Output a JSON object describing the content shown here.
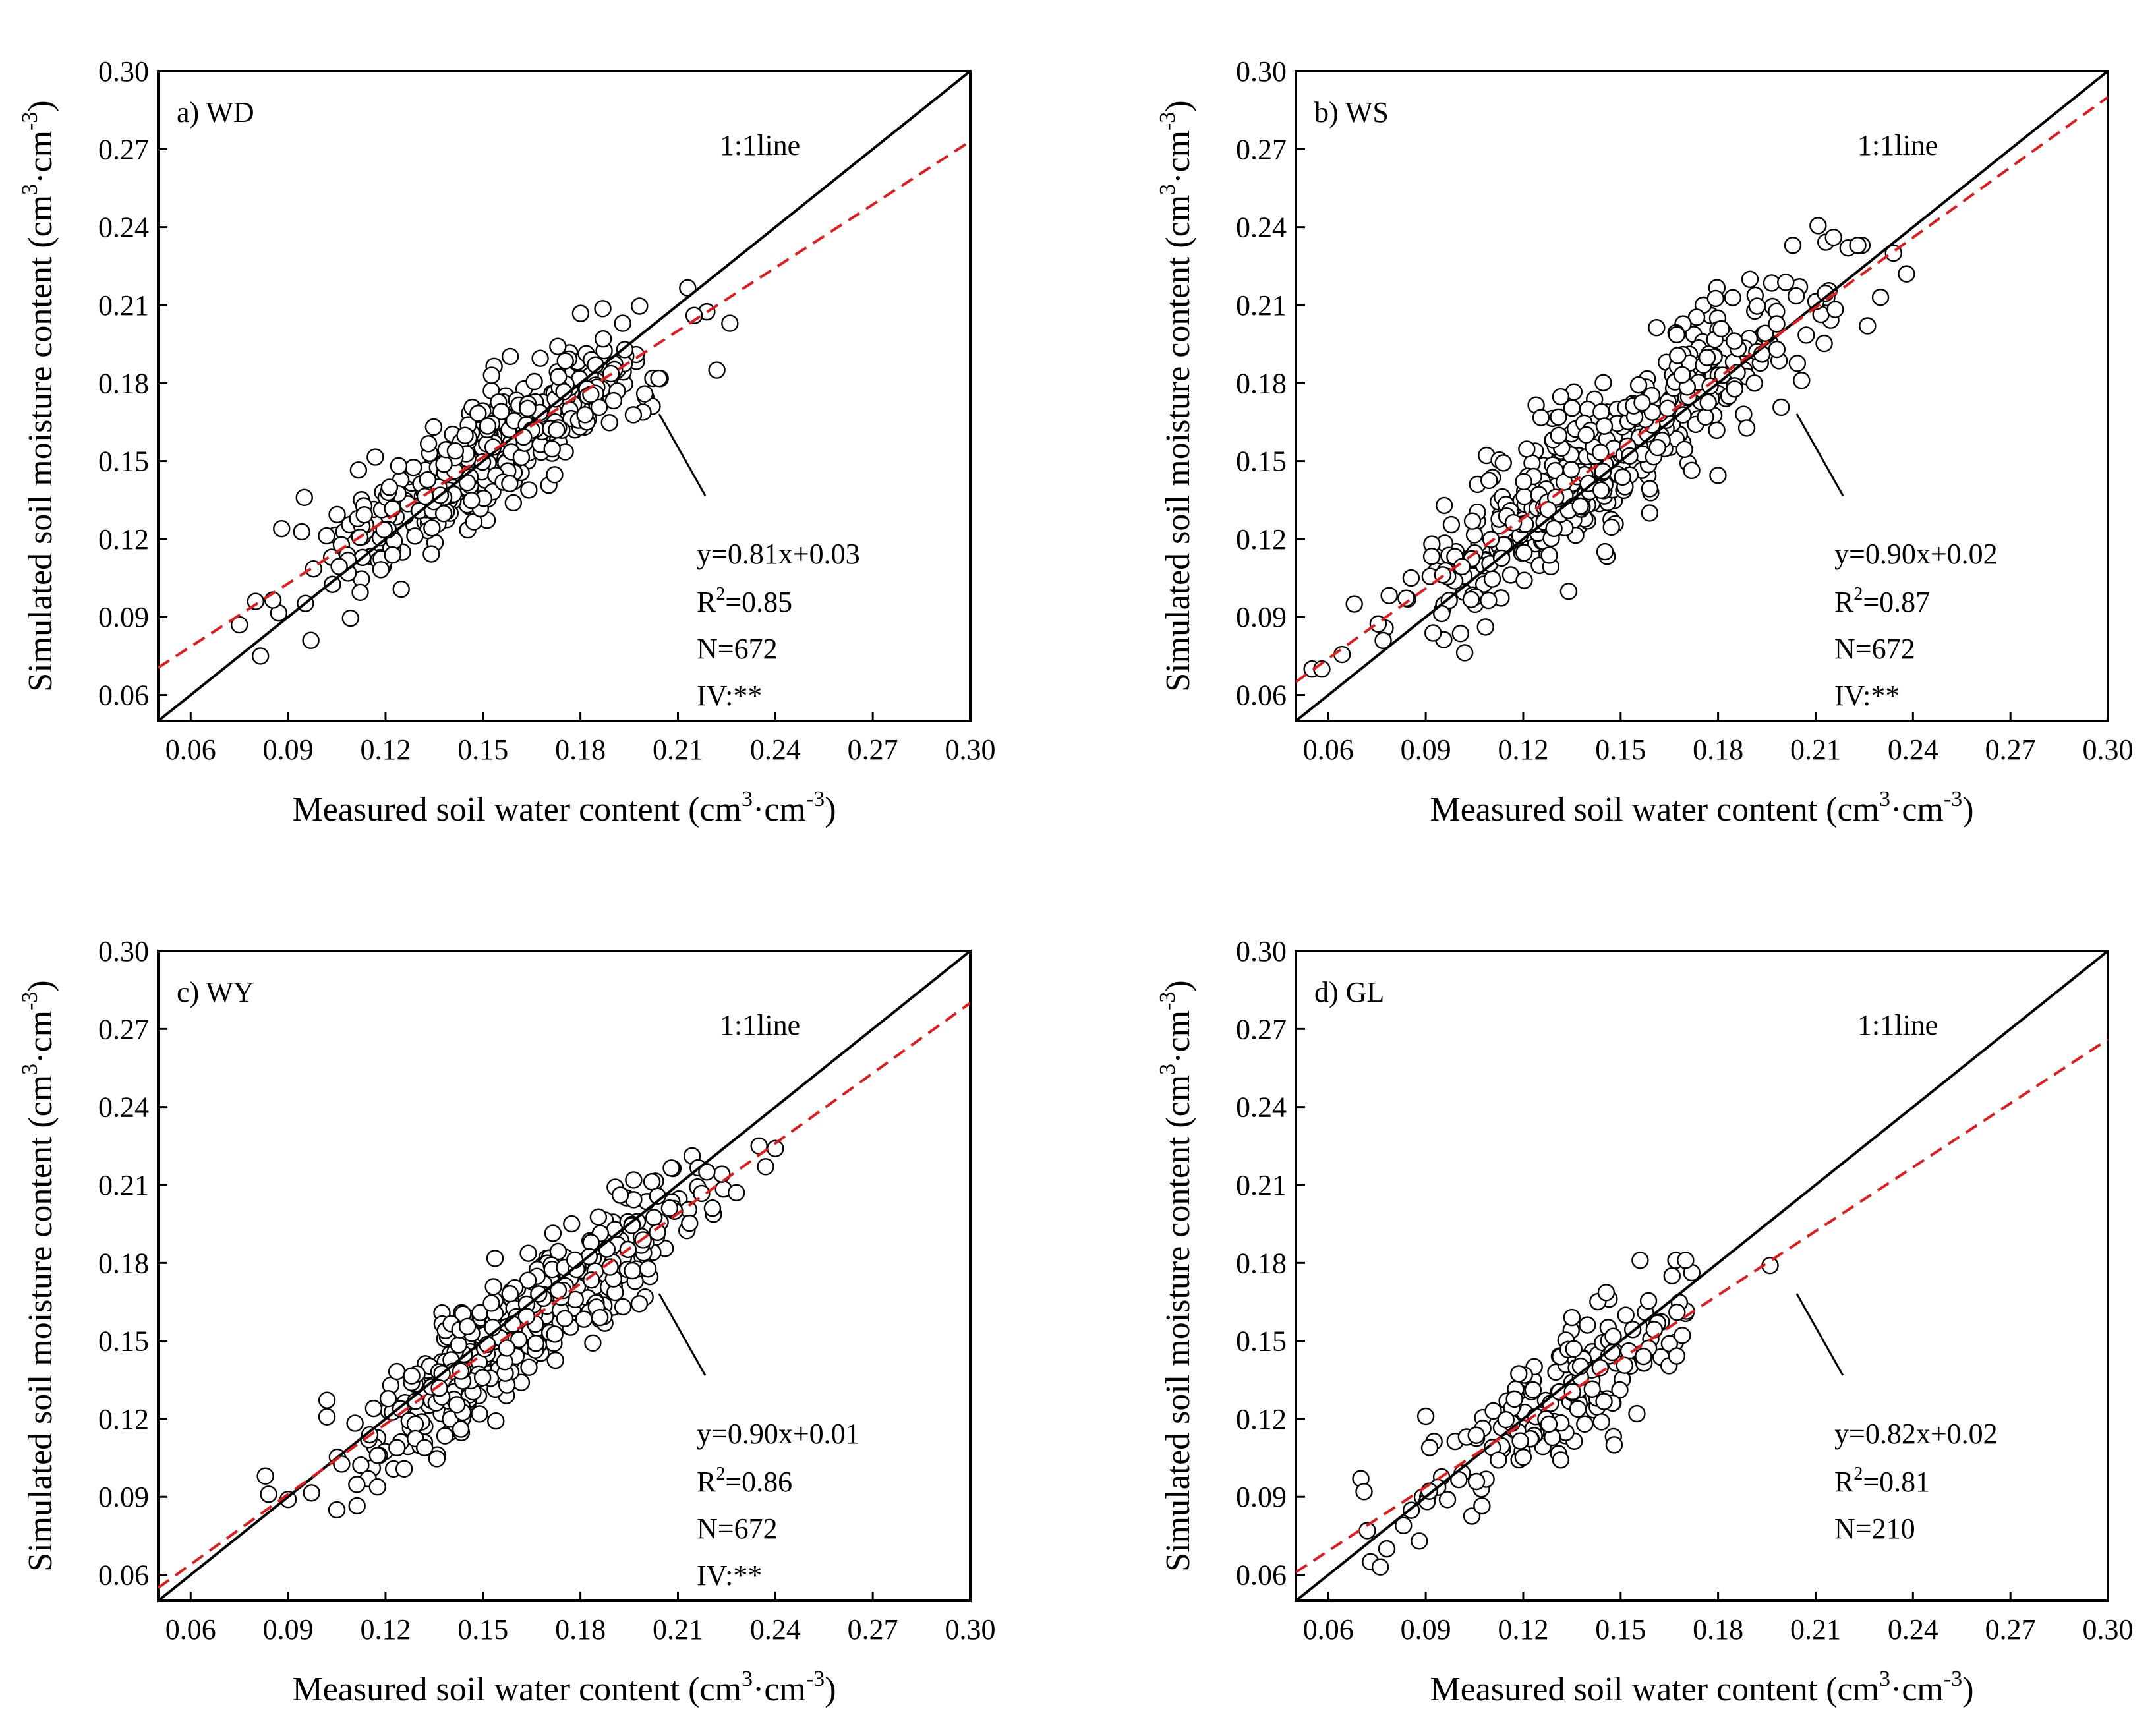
{
  "chart_data": [
    {
      "type": "scatter",
      "panel_label": "a) WD",
      "xlabel_main": "Measured soil water content (cm",
      "xlabel_sup1": "3",
      "xlabel_mid": "·cm",
      "xlabel_sup2": "-3",
      "xlabel_end": ")",
      "ylabel_main": "Simulated soil moisture content (cm",
      "ylabel_sup1": "3",
      "ylabel_mid": "·cm",
      "ylabel_sup2": "-3",
      "ylabel_end": ")",
      "xlim": [
        0.05,
        0.3
      ],
      "ylim": [
        0.05,
        0.3
      ],
      "xticks": [
        "0.06",
        "0.09",
        "0.12",
        "0.15",
        "0.18",
        "0.21",
        "0.24",
        "0.27",
        "0.30"
      ],
      "yticks": [
        "0.06",
        "0.09",
        "0.12",
        "0.15",
        "0.18",
        "0.21",
        "0.24",
        "0.27",
        "0.30"
      ],
      "one_to_one_label": "1:1line",
      "fit": {
        "slope": 0.81,
        "intercept": 0.03,
        "color": "#e31a1c"
      },
      "stats": {
        "equation": "y=0.81x+0.03",
        "r2_prefix": "R",
        "r2_sup": "2",
        "r2_value": "=0.85",
        "n": "N=672",
        "iv": "IV:**"
      },
      "point_cloud": {
        "count": 420,
        "x_range": [
          0.075,
          0.225
        ],
        "noise": 0.011,
        "seed": 11
      },
      "points": [
        [
          0.075,
          0.087
        ],
        [
          0.08,
          0.096
        ],
        [
          0.088,
          0.124
        ],
        [
          0.095,
          0.136
        ],
        [
          0.097,
          0.081
        ],
        [
          0.222,
          0.185
        ],
        [
          0.215,
          0.206
        ],
        [
          0.226,
          0.203
        ],
        [
          0.193,
          0.203
        ],
        [
          0.187,
          0.197
        ]
      ]
    },
    {
      "type": "scatter",
      "panel_label": "b) WS",
      "xlabel_main": "Measured soil water content (cm",
      "xlabel_sup1": "3",
      "xlabel_mid": "·cm",
      "xlabel_sup2": "-3",
      "xlabel_end": ")",
      "ylabel_main": "Simulated soil moisture content (cm",
      "ylabel_sup1": "3",
      "ylabel_mid": "·cm",
      "ylabel_sup2": "-3",
      "ylabel_end": ")",
      "xlim": [
        0.05,
        0.3
      ],
      "ylim": [
        0.05,
        0.3
      ],
      "xticks": [
        "0.06",
        "0.09",
        "0.12",
        "0.15",
        "0.18",
        "0.21",
        "0.24",
        "0.27",
        "0.30"
      ],
      "yticks": [
        "0.06",
        "0.09",
        "0.12",
        "0.15",
        "0.18",
        "0.21",
        "0.24",
        "0.27",
        "0.30"
      ],
      "one_to_one_label": "1:1line",
      "fit": {
        "slope": 0.9,
        "intercept": 0.02,
        "color": "#e31a1c"
      },
      "stats": {
        "equation": "y=0.90x+0.02",
        "r2_prefix": "R",
        "r2_sup": "2",
        "r2_value": "=0.87",
        "n": "N=672",
        "iv": "IV:**"
      },
      "point_cloud": {
        "count": 470,
        "x_range": [
          0.055,
          0.238
        ],
        "noise": 0.014,
        "seed": 23
      },
      "points": [
        [
          0.055,
          0.07
        ],
        [
          0.058,
          0.07
        ],
        [
          0.068,
          0.095
        ],
        [
          0.203,
          0.233
        ],
        [
          0.22,
          0.232
        ],
        [
          0.223,
          0.233
        ],
        [
          0.234,
          0.23
        ],
        [
          0.238,
          0.222
        ],
        [
          0.23,
          0.213
        ],
        [
          0.226,
          0.202
        ]
      ]
    },
    {
      "type": "scatter",
      "panel_label": "c) WY",
      "xlabel_main": "Measured soil water content (cm",
      "xlabel_sup1": "3",
      "xlabel_mid": "·cm",
      "xlabel_sup2": "-3",
      "xlabel_end": ")",
      "ylabel_main": "Simulated soil moisture content (cm",
      "ylabel_sup1": "3",
      "ylabel_mid": "·cm",
      "ylabel_sup2": "-3",
      "ylabel_end": ")",
      "xlim": [
        0.05,
        0.3
      ],
      "ylim": [
        0.05,
        0.3
      ],
      "xticks": [
        "0.06",
        "0.09",
        "0.12",
        "0.15",
        "0.18",
        "0.21",
        "0.24",
        "0.27",
        "0.30"
      ],
      "yticks": [
        "0.06",
        "0.09",
        "0.12",
        "0.15",
        "0.18",
        "0.21",
        "0.24",
        "0.27",
        "0.30"
      ],
      "one_to_one_label": "1:1line",
      "fit": {
        "slope": 0.9,
        "intercept": 0.01,
        "color": "#e31a1c"
      },
      "stats": {
        "equation": "y=0.90x+0.01",
        "r2_prefix": "R",
        "r2_sup": "2",
        "r2_value": "=0.86",
        "n": "N=672",
        "iv": "IV:**"
      },
      "point_cloud": {
        "count": 460,
        "x_range": [
          0.083,
          0.24
        ],
        "noise": 0.011,
        "seed": 37
      },
      "points": [
        [
          0.083,
          0.098
        ],
        [
          0.084,
          0.091
        ],
        [
          0.09,
          0.089
        ],
        [
          0.105,
          0.085
        ],
        [
          0.235,
          0.225
        ],
        [
          0.24,
          0.224
        ],
        [
          0.237,
          0.217
        ],
        [
          0.228,
          0.207
        ],
        [
          0.196,
          0.177
        ],
        [
          0.186,
          0.159
        ]
      ]
    },
    {
      "type": "scatter",
      "panel_label": "d) GL",
      "xlabel_main": "Measured soil water content (cm",
      "xlabel_sup1": "3",
      "xlabel_mid": "·cm",
      "xlabel_sup2": "-3",
      "xlabel_end": ")",
      "ylabel_main": "Simulated soil moisture content (cm",
      "ylabel_sup1": "3",
      "ylabel_mid": "·cm",
      "ylabel_sup2": "-3",
      "ylabel_end": ")",
      "xlim": [
        0.05,
        0.3
      ],
      "ylim": [
        0.05,
        0.3
      ],
      "xticks": [
        "0.06",
        "0.09",
        "0.12",
        "0.15",
        "0.18",
        "0.21",
        "0.24",
        "0.27",
        "0.30"
      ],
      "yticks": [
        "0.06",
        "0.09",
        "0.12",
        "0.15",
        "0.18",
        "0.21",
        "0.24",
        "0.27",
        "0.30"
      ],
      "one_to_one_label": "1:1line",
      "fit": {
        "slope": 0.82,
        "intercept": 0.02,
        "color": "#e31a1c"
      },
      "stats": {
        "equation": "y=0.82x+0.02",
        "r2_prefix": "R",
        "r2_sup": "2",
        "r2_value": "=0.81",
        "n": "N=210",
        "iv": ""
      },
      "point_cloud": {
        "count": 165,
        "x_range": [
          0.07,
          0.196
        ],
        "noise": 0.012,
        "seed": 53
      },
      "points": [
        [
          0.07,
          0.097
        ],
        [
          0.071,
          0.092
        ],
        [
          0.072,
          0.077
        ],
        [
          0.073,
          0.065
        ],
        [
          0.076,
          0.063
        ],
        [
          0.078,
          0.07
        ],
        [
          0.088,
          0.073
        ],
        [
          0.09,
          0.121
        ],
        [
          0.156,
          0.181
        ],
        [
          0.167,
          0.181
        ],
        [
          0.17,
          0.181
        ],
        [
          0.196,
          0.179
        ],
        [
          0.135,
          0.159
        ],
        [
          0.148,
          0.11
        ],
        [
          0.155,
          0.122
        ]
      ]
    }
  ]
}
